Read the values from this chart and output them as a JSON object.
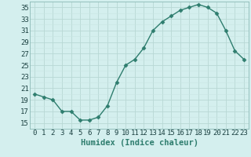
{
  "x": [
    0,
    1,
    2,
    3,
    4,
    5,
    6,
    7,
    8,
    9,
    10,
    11,
    12,
    13,
    14,
    15,
    16,
    17,
    18,
    19,
    20,
    21,
    22,
    23
  ],
  "y": [
    20,
    19.5,
    19,
    17,
    17,
    15.5,
    15.5,
    16,
    18,
    22,
    25,
    26,
    28,
    31,
    32.5,
    33.5,
    34.5,
    35,
    35.5,
    35,
    34,
    31,
    27.5,
    26
  ],
  "line_color": "#2e7d6e",
  "marker": "D",
  "marker_size": 2.5,
  "bg_color": "#d4efee",
  "grid_major_color": "#b8d8d4",
  "grid_minor_color": "#c8e5e2",
  "xlabel": "Humidex (Indice chaleur)",
  "xlabel_fontsize": 7.5,
  "xlim": [
    -0.5,
    23.5
  ],
  "ylim": [
    14,
    36
  ],
  "yticks": [
    15,
    17,
    19,
    21,
    23,
    25,
    27,
    29,
    31,
    33,
    35
  ],
  "xticks": [
    0,
    1,
    2,
    3,
    4,
    5,
    6,
    7,
    8,
    9,
    10,
    11,
    12,
    13,
    14,
    15,
    16,
    17,
    18,
    19,
    20,
    21,
    22,
    23
  ],
  "tick_fontsize": 6.5,
  "line_width": 1.0
}
